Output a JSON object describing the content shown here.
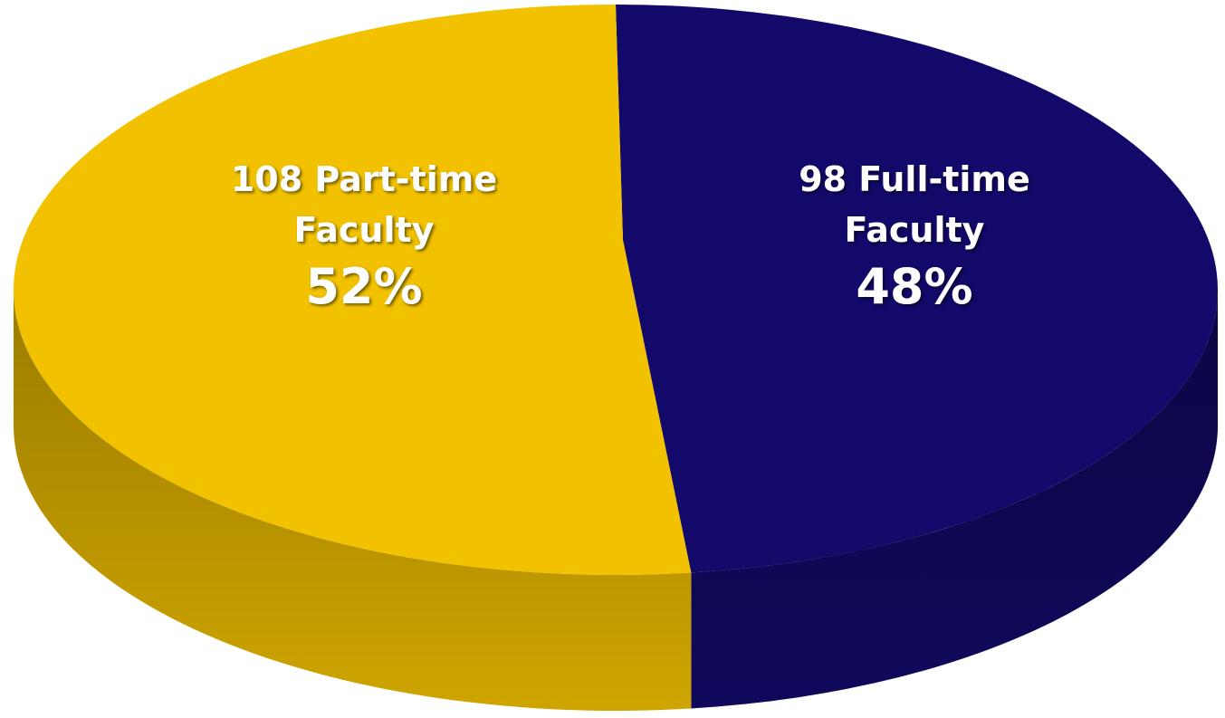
{
  "chart_data": {
    "type": "pie",
    "categories": [
      "98 Full-time Faculty",
      "108 Part-time Faculty"
    ],
    "values": [
      48,
      52
    ],
    "value_labels": [
      "48%",
      "52%"
    ],
    "colors": [
      "#13096b",
      "#f2c200"
    ]
  }
}
